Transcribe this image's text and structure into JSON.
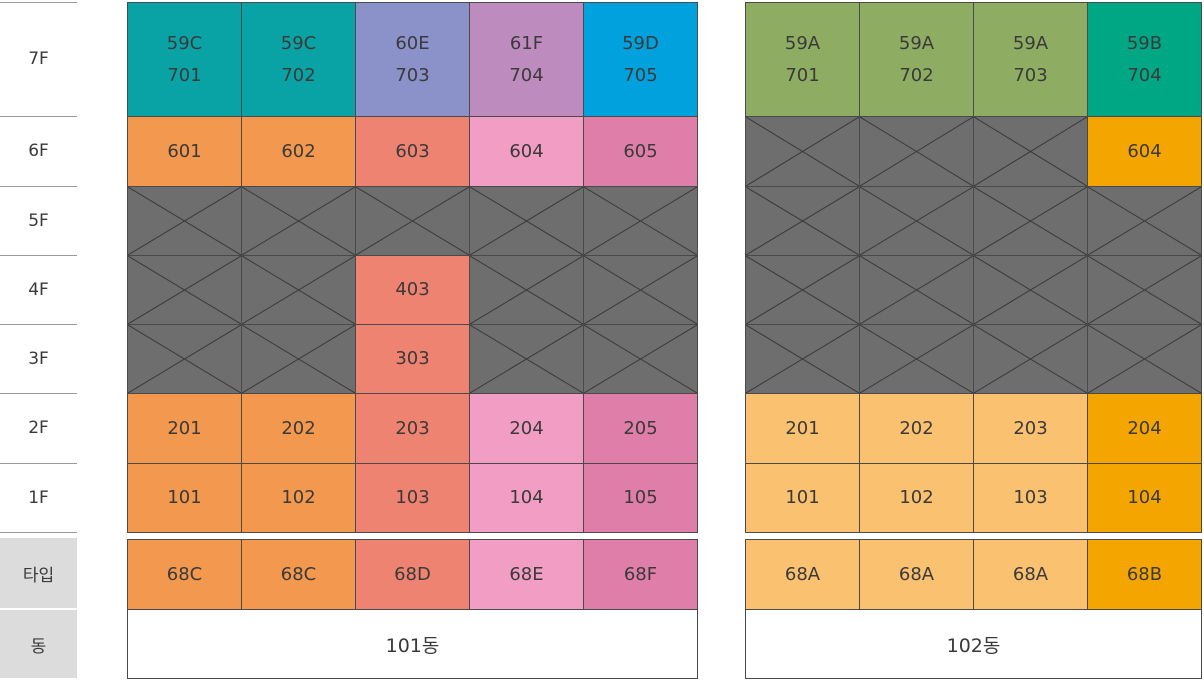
{
  "floor_labels": [
    "7F",
    "6F",
    "5F",
    "4F",
    "3F",
    "2F",
    "1F"
  ],
  "type_label": "타입",
  "building_label": "동",
  "buildings": [
    {
      "name": "101동",
      "rows": [
        [
          {
            "type": "59C",
            "unit": "701",
            "color": "#0aa3a5"
          },
          {
            "type": "59C",
            "unit": "702",
            "color": "#0aa3a5"
          },
          {
            "type": "60E",
            "unit": "703",
            "color": "#8b92c9"
          },
          {
            "type": "61F",
            "unit": "704",
            "color": "#bd8bbe"
          },
          {
            "type": "59D",
            "unit": "705",
            "color": "#00a1dc"
          }
        ],
        [
          {
            "unit": "601",
            "color": "#f3984f"
          },
          {
            "unit": "602",
            "color": "#f3984f"
          },
          {
            "unit": "603",
            "color": "#ef8372"
          },
          {
            "unit": "604",
            "color": "#f29ec4"
          },
          {
            "unit": "605",
            "color": "#df7ea9"
          }
        ],
        [
          null,
          null,
          null,
          null,
          null
        ],
        [
          null,
          null,
          {
            "unit": "403",
            "color": "#ef8372"
          },
          null,
          null
        ],
        [
          null,
          null,
          {
            "unit": "303",
            "color": "#ef8372"
          },
          null,
          null
        ],
        [
          {
            "unit": "201",
            "color": "#f3984f"
          },
          {
            "unit": "202",
            "color": "#f3984f"
          },
          {
            "unit": "203",
            "color": "#ef8372"
          },
          {
            "unit": "204",
            "color": "#f29ec4"
          },
          {
            "unit": "205",
            "color": "#df7ea9"
          }
        ],
        [
          {
            "unit": "101",
            "color": "#f3984f"
          },
          {
            "unit": "102",
            "color": "#f3984f"
          },
          {
            "unit": "103",
            "color": "#ef8372"
          },
          {
            "unit": "104",
            "color": "#f29ec4"
          },
          {
            "unit": "105",
            "color": "#df7ea9"
          }
        ]
      ],
      "types": [
        {
          "type": "68C",
          "color": "#f3984f"
        },
        {
          "type": "68C",
          "color": "#f3984f"
        },
        {
          "type": "68D",
          "color": "#ef8372"
        },
        {
          "type": "68E",
          "color": "#f29ec4"
        },
        {
          "type": "68F",
          "color": "#df7ea9"
        }
      ]
    },
    {
      "name": "102동",
      "rows": [
        [
          {
            "type": "59A",
            "unit": "701",
            "color": "#8fad62"
          },
          {
            "type": "59A",
            "unit": "702",
            "color": "#8fad62"
          },
          {
            "type": "59A",
            "unit": "703",
            "color": "#8fad62"
          },
          {
            "type": "59B",
            "unit": "704",
            "color": "#00a785"
          }
        ],
        [
          null,
          null,
          null,
          {
            "unit": "604",
            "color": "#f5a500"
          }
        ],
        [
          null,
          null,
          null,
          null
        ],
        [
          null,
          null,
          null,
          null
        ],
        [
          null,
          null,
          null,
          null
        ],
        [
          {
            "unit": "201",
            "color": "#fac171"
          },
          {
            "unit": "202",
            "color": "#fac171"
          },
          {
            "unit": "203",
            "color": "#fac171"
          },
          {
            "unit": "204",
            "color": "#f5a500"
          }
        ],
        [
          {
            "unit": "101",
            "color": "#fac171"
          },
          {
            "unit": "102",
            "color": "#fac171"
          },
          {
            "unit": "103",
            "color": "#fac171"
          },
          {
            "unit": "104",
            "color": "#f5a500"
          }
        ]
      ],
      "types": [
        {
          "type": "68A",
          "color": "#fac171"
        },
        {
          "type": "68A",
          "color": "#fac171"
        },
        {
          "type": "68A",
          "color": "#fac171"
        },
        {
          "type": "68B",
          "color": "#f5a500"
        }
      ]
    }
  ]
}
